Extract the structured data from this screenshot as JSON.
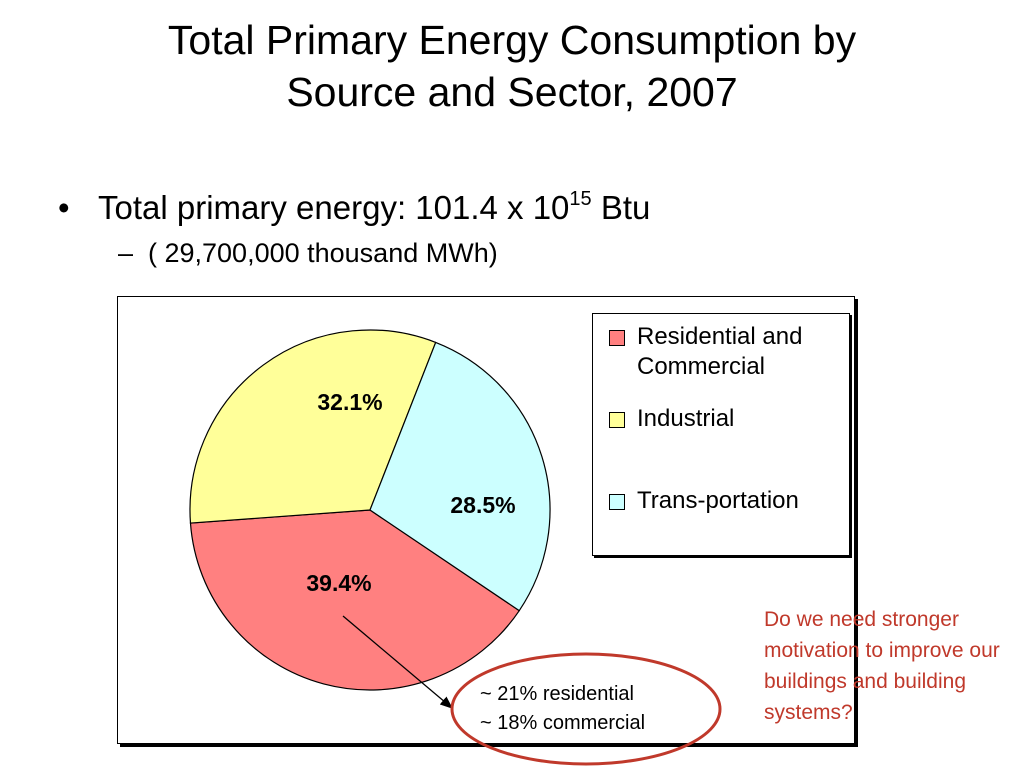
{
  "slide": {
    "title_line1": "Total Primary Energy Consumption by",
    "title_line2": "Source and Sector, 2007",
    "bullet_marker": "•",
    "bullet_text": "Total primary energy: 101.4 x 10",
    "bullet_exponent": "15",
    "bullet_unit": " Btu",
    "sub_marker": "–",
    "sub_text": "( 29,700,000 thousand MWh)",
    "note": "Do we need stronger motivation to improve our buildings and building systems?",
    "callout_line1": "~ 21% residential",
    "callout_line2": "~ 18% commercial"
  },
  "chart_data": {
    "type": "pie",
    "title": "",
    "legend_placement": "right",
    "slices": [
      {
        "name": "Residential and Commercial",
        "value": 39.4,
        "label": "39.4%",
        "color": "#ff8080"
      },
      {
        "name": "Industrial",
        "value": 32.1,
        "label": "32.1%",
        "color": "#ffff99"
      },
      {
        "name": "Trans-portation",
        "value": 28.5,
        "label": "28.5%",
        "color": "#ccffff"
      }
    ]
  },
  "colors": {
    "note_text": "#c0392b",
    "callout_ring": "#c0392b"
  }
}
